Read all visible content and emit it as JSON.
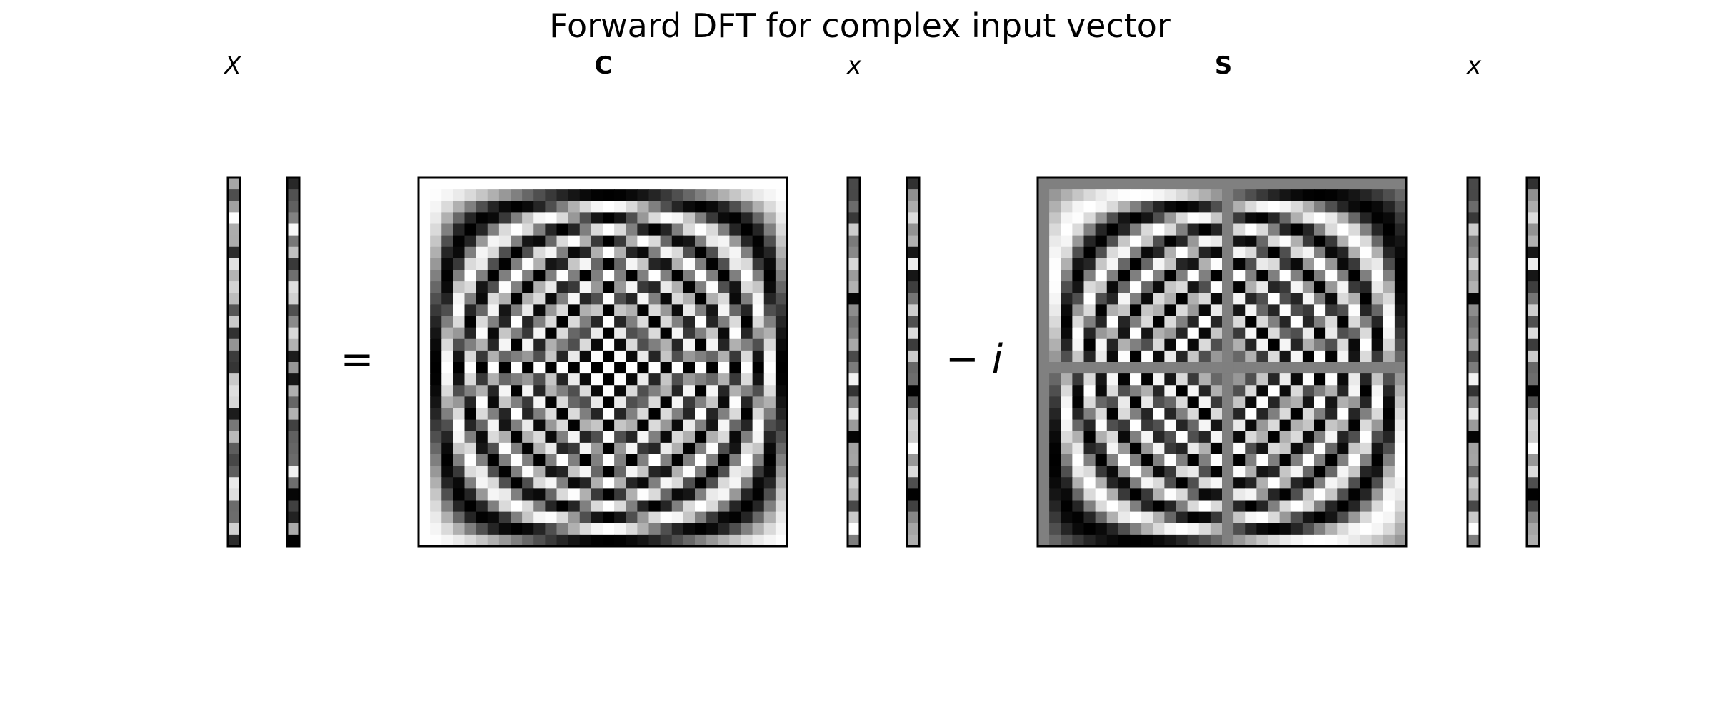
{
  "title": "Forward DFT for complex input vector",
  "labels": {
    "X": "X",
    "C": "C",
    "x1": "x",
    "S": "S",
    "x2": "x"
  },
  "operators": {
    "equals": "=",
    "minus_i": "− i"
  },
  "matrix_size": 32,
  "colors": {
    "background": "#ffffff",
    "frame": "#000000",
    "colormap": "gray"
  }
}
